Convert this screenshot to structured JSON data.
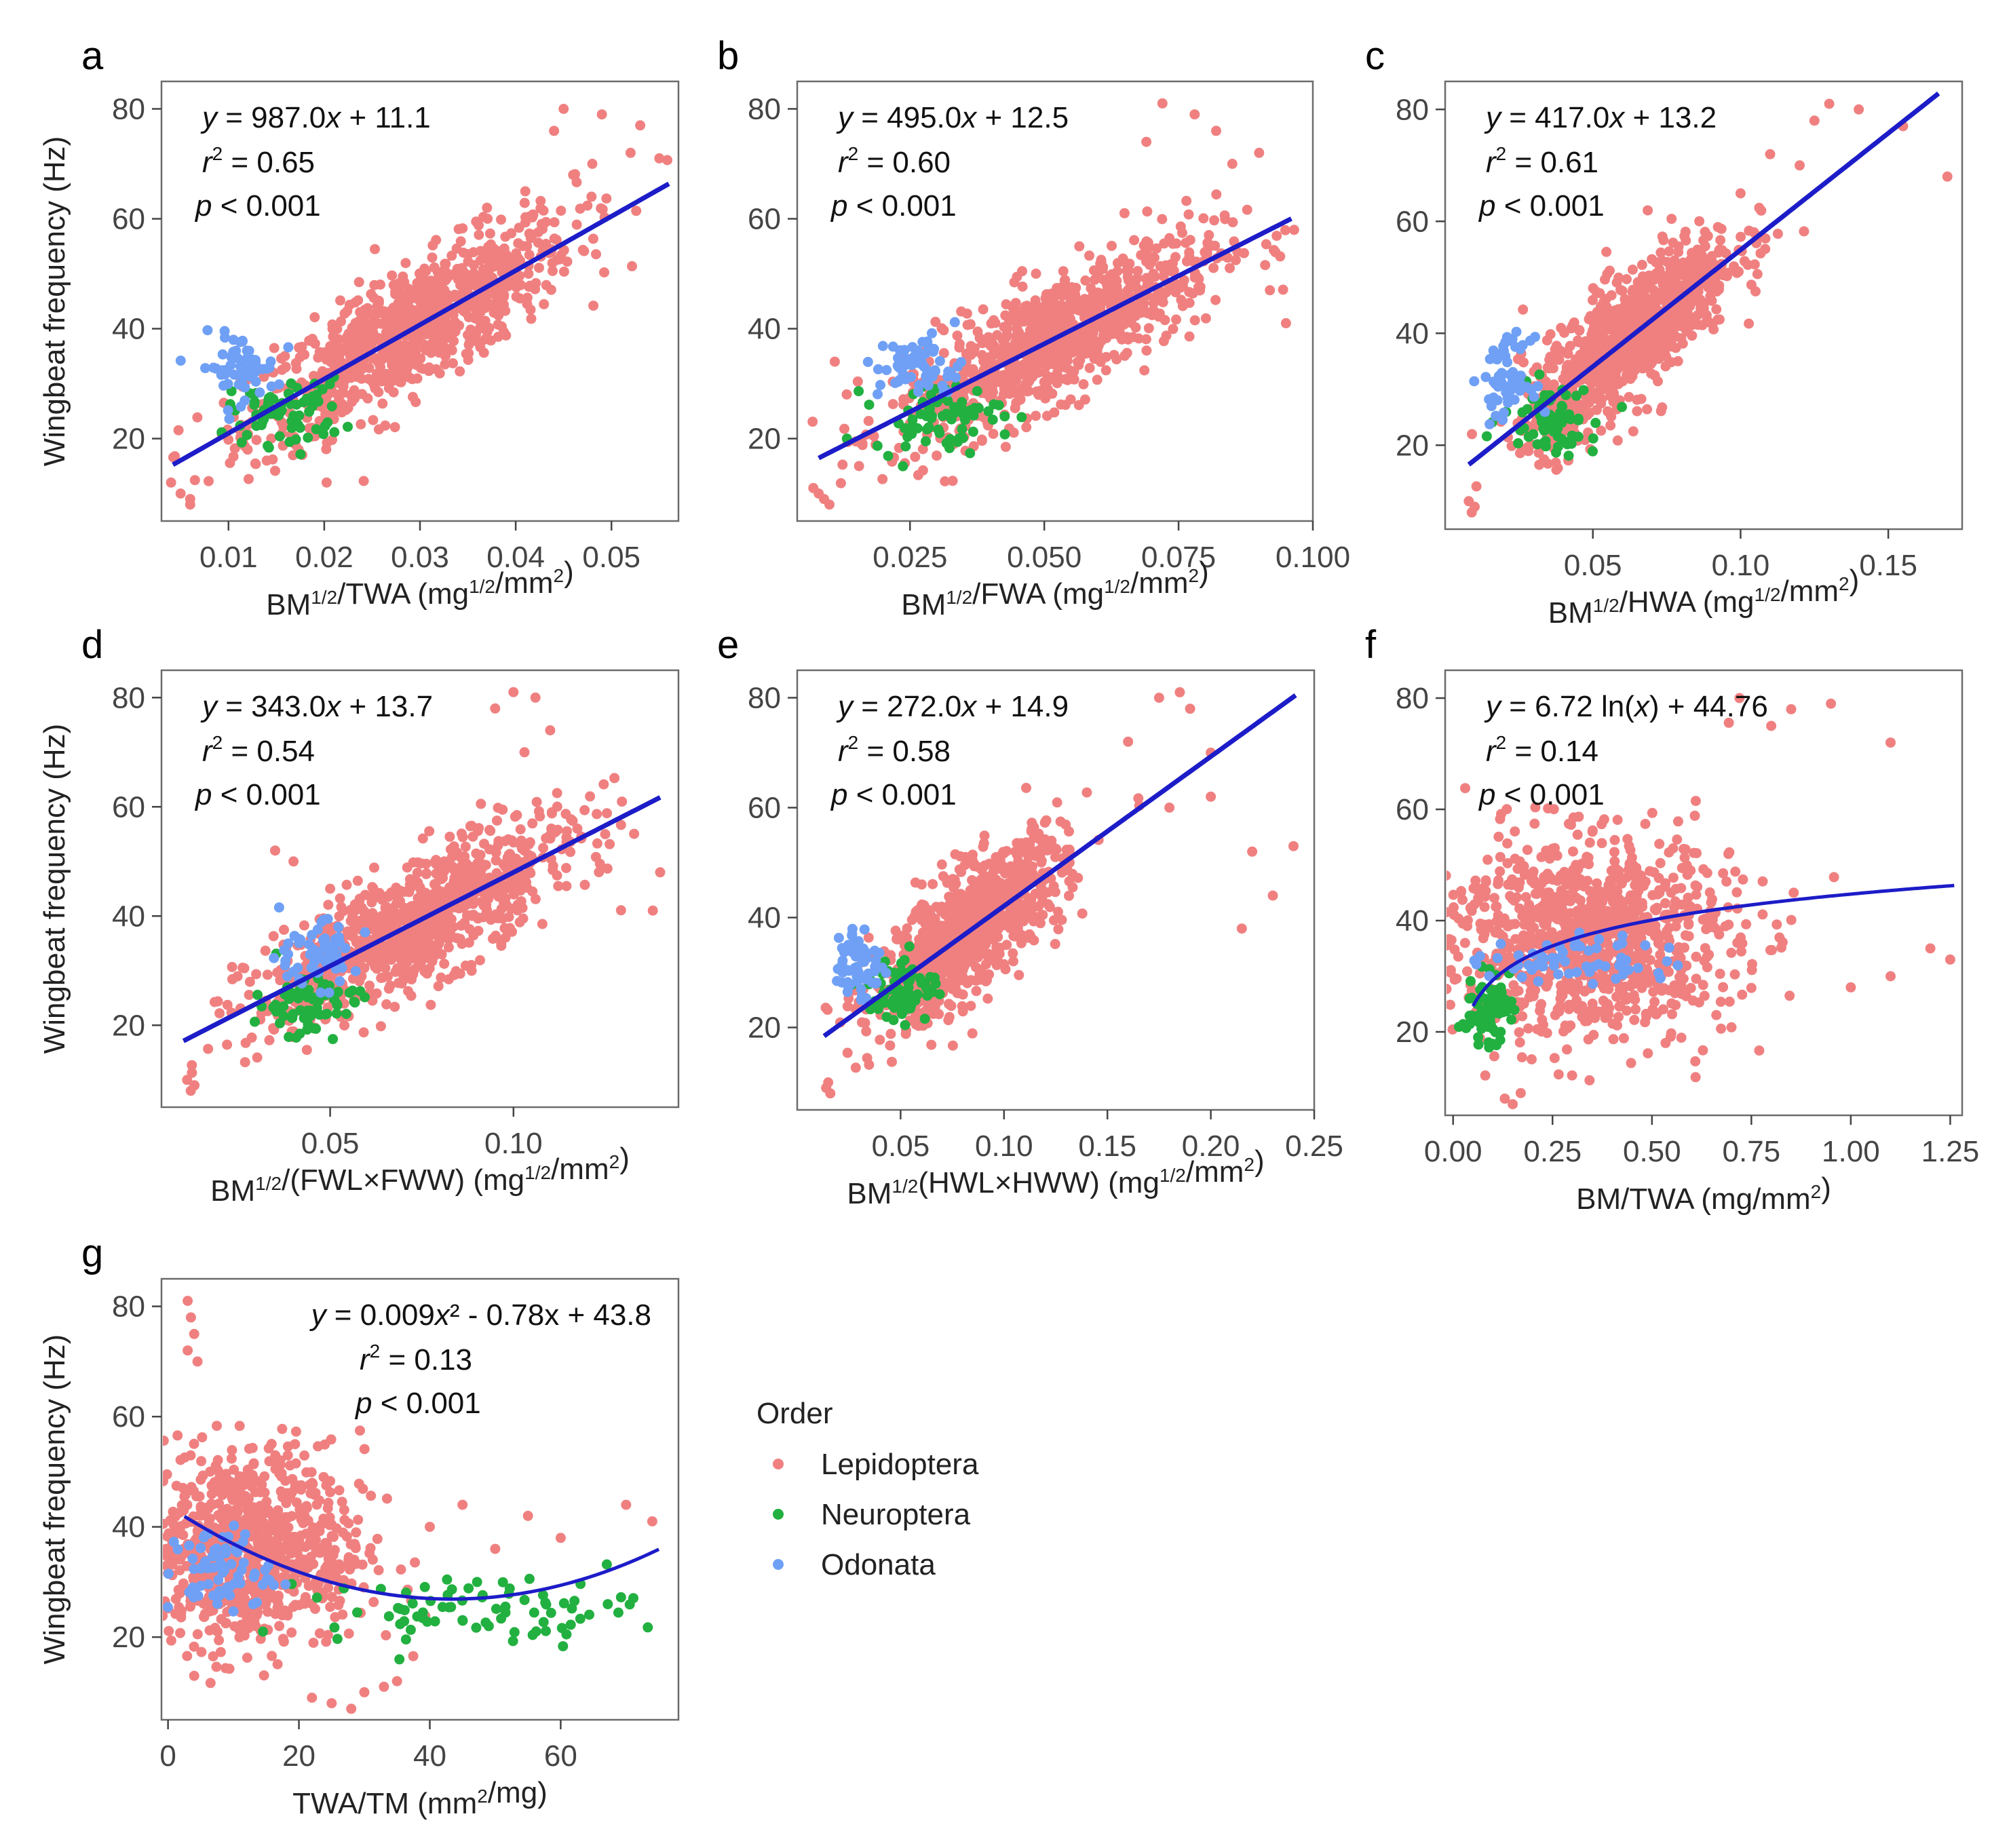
{
  "legend": {
    "title": "Order",
    "items": [
      {
        "label": "Lepidoptera",
        "color": "#F08080"
      },
      {
        "label": "Neuroptera",
        "color": "#22B040"
      },
      {
        "label": "Odonata",
        "color": "#6FA0F5"
      }
    ]
  },
  "fit_color": "#1C1CC8",
  "chart_data": [
    {
      "panel": "a",
      "type": "scatter",
      "xlabel_base": "BM",
      "xlabel_sup": "1/2",
      "xlabel_mid": "/TWA (mg",
      "xlabel_sup2": "1/2",
      "xlabel_tail": "/mm",
      "xlabel_sup3": "2",
      "xlabel_end": ")",
      "ylabel": "Wingbeat frequency (Hz)",
      "xlim": [
        0.003,
        0.057
      ],
      "ylim": [
        5,
        85
      ],
      "xticks": [
        0.01,
        0.02,
        0.03,
        0.04,
        0.05
      ],
      "xtick_labels": [
        "0.01",
        "0.02",
        "0.03",
        "0.04",
        "0.05"
      ],
      "yticks": [
        20,
        40,
        60,
        80
      ],
      "ytick_labels": [
        "20",
        "40",
        "60",
        "80"
      ],
      "eq": "y = 987.0x + 11.1",
      "eq_y": "y",
      "eq_rest": " = 987.0",
      "eq_x": "x",
      "eq_tail": " + 11.1",
      "r2": "0.65",
      "p": "0.001",
      "fit": {
        "kind": "linear",
        "slope": 987.0,
        "intercept": 11.1,
        "x_from": 0.0042,
        "x_to": 0.056
      },
      "clouds": {
        "Lepidoptera": {
          "center": [
            0.029,
            38
          ],
          "spread": [
            0.0085,
            7.5
          ],
          "n": 900,
          "outliers": [
            [
              0.045,
              80
            ],
            [
              0.049,
              79
            ],
            [
              0.044,
              76
            ],
            [
              0.052,
              72
            ],
            [
              0.048,
              70
            ],
            [
              0.055,
              71
            ],
            [
              0.005,
              10
            ],
            [
              0.006,
              9
            ],
            [
              0.004,
              12
            ],
            [
              0.006,
              8
            ],
            [
              0.041,
              65
            ],
            [
              0.037,
              62
            ],
            [
              0.012,
              18
            ],
            [
              0.014,
              16
            ],
            [
              0.046,
              68
            ],
            [
              0.053,
              77
            ]
          ]
        },
        "Neuroptera": {
          "center": [
            0.016,
            25
          ],
          "spread": [
            0.003,
            3
          ],
          "n": 70
        },
        "Odonata": {
          "center": [
            0.011,
            33
          ],
          "spread": [
            0.002,
            3
          ],
          "n": 60
        }
      }
    },
    {
      "panel": "b",
      "type": "scatter",
      "xlabel_base": "BM",
      "xlabel_sup": "1/2",
      "xlabel_mid": "/FWA (mg",
      "xlabel_sup2": "1/2",
      "xlabel_tail": "/mm",
      "xlabel_sup3": "2",
      "xlabel_end": ")",
      "ylabel": "Wingbeat frequency (Hz)",
      "xlim": [
        0.004,
        0.1
      ],
      "ylim": [
        5,
        85
      ],
      "xticks": [
        0.025,
        0.05,
        0.075,
        0.1
      ],
      "xtick_labels": [
        "0.025",
        "0.050",
        "0.075",
        "0.100"
      ],
      "yticks": [
        20,
        40,
        60,
        80
      ],
      "ytick_labels": [
        "20",
        "40",
        "60",
        "80"
      ],
      "eq": "y = 495.0x + 12.5",
      "eq_y": "y",
      "eq_rest": " = 495.0",
      "eq_x": "x",
      "eq_tail": " + 12.5",
      "r2": "0.60",
      "p": "0.001",
      "fit": {
        "kind": "linear",
        "slope": 495.0,
        "intercept": 12.5,
        "x_from": 0.008,
        "x_to": 0.096
      },
      "clouds": {
        "Lepidoptera": {
          "center": [
            0.052,
            38
          ],
          "spread": [
            0.015,
            7.5
          ],
          "n": 900,
          "outliers": [
            [
              0.072,
              81
            ],
            [
              0.078,
              79
            ],
            [
              0.082,
              76
            ],
            [
              0.069,
              74
            ],
            [
              0.085,
              70
            ],
            [
              0.09,
              72
            ],
            [
              0.008,
              10
            ],
            [
              0.009,
              9
            ],
            [
              0.01,
              8
            ],
            [
              0.007,
              11
            ],
            [
              0.095,
              41
            ],
            [
              0.092,
              47
            ],
            [
              0.011,
              34
            ]
          ]
        },
        "Neuroptera": {
          "center": [
            0.03,
            24
          ],
          "spread": [
            0.006,
            3
          ],
          "n": 70
        },
        "Odonata": {
          "center": [
            0.027,
            33
          ],
          "spread": [
            0.004,
            3
          ],
          "n": 60
        }
      }
    },
    {
      "panel": "c",
      "type": "scatter",
      "xlabel_base": "BM",
      "xlabel_sup": "1/2",
      "xlabel_mid": "/HWA (mg",
      "xlabel_sup2": "1/2",
      "xlabel_tail": "/mm",
      "xlabel_sup3": "2",
      "xlabel_end": ")",
      "ylabel": "Wingbeat frequency (Hz)",
      "xlim": [
        0.0,
        0.175
      ],
      "ylim": [
        5,
        85
      ],
      "xticks": [
        0.05,
        0.1,
        0.15
      ],
      "xtick_labels": [
        "0.05",
        "0.10",
        "0.15"
      ],
      "yticks": [
        20,
        40,
        60,
        80
      ],
      "ytick_labels": [
        "20",
        "40",
        "60",
        "80"
      ],
      "eq": "y = 417.0x + 13.2",
      "eq_y": "y",
      "eq_rest": " = 417.0",
      "eq_x": "x",
      "eq_tail": " + 13.2",
      "r2": "0.61",
      "p": "0.001",
      "fit": {
        "kind": "linear",
        "slope": 417.0,
        "intercept": 13.2,
        "x_from": 0.008,
        "x_to": 0.167
      },
      "clouds": {
        "Lepidoptera": {
          "center": [
            0.062,
            38
          ],
          "spread": [
            0.018,
            7.5
          ],
          "n": 900,
          "outliers": [
            [
              0.13,
              81
            ],
            [
              0.125,
              78
            ],
            [
              0.14,
              80
            ],
            [
              0.11,
              72
            ],
            [
              0.155,
              77
            ],
            [
              0.17,
              68
            ],
            [
              0.008,
              10
            ],
            [
              0.009,
              8
            ],
            [
              0.01,
              9
            ],
            [
              0.12,
              70
            ],
            [
              0.1,
              65
            ]
          ]
        },
        "Neuroptera": {
          "center": [
            0.036,
            25
          ],
          "spread": [
            0.008,
            3
          ],
          "n": 70
        },
        "Odonata": {
          "center": [
            0.021,
            32
          ],
          "spread": [
            0.004,
            3.5
          ],
          "n": 60
        }
      }
    },
    {
      "panel": "d",
      "type": "scatter",
      "xlabel_base": "BM",
      "xlabel_sup": "1/2",
      "xlabel_mid": "/(FWL×FWW) (mg",
      "xlabel_sup2": "1/2",
      "xlabel_tail": "/mm",
      "xlabel_sup3": "2",
      "xlabel_end": ")",
      "ylabel": "Wingbeat frequency (Hz)",
      "xlim": [
        0.004,
        0.145
      ],
      "ylim": [
        5,
        85
      ],
      "xticks": [
        0.05,
        0.1
      ],
      "xtick_labels": [
        "0.05",
        "0.10"
      ],
      "yticks": [
        20,
        40,
        60,
        80
      ],
      "ytick_labels": [
        "20",
        "40",
        "60",
        "80"
      ],
      "eq": "y = 343.0x + 13.7",
      "eq_y": "y",
      "eq_rest": " = 343.0",
      "eq_x": "x",
      "eq_tail": " + 13.7",
      "r2": "0.54",
      "p": "0.001",
      "fit": {
        "kind": "linear",
        "slope": 343.0,
        "intercept": 13.7,
        "x_from": 0.01,
        "x_to": 0.14
      },
      "clouds": {
        "Lepidoptera": {
          "center": [
            0.073,
            38
          ],
          "spread": [
            0.022,
            7.5
          ],
          "n": 900,
          "outliers": [
            [
              0.1,
              81
            ],
            [
              0.106,
              80
            ],
            [
              0.095,
              78
            ],
            [
              0.11,
              74
            ],
            [
              0.103,
              70
            ],
            [
              0.011,
              10
            ],
            [
              0.012,
              8
            ],
            [
              0.013,
              9
            ],
            [
              0.14,
              48
            ],
            [
              0.138,
              41
            ],
            [
              0.035,
              52
            ],
            [
              0.04,
              50
            ],
            [
              0.05,
              45
            ]
          ]
        },
        "Neuroptera": {
          "center": [
            0.044,
            24
          ],
          "spread": [
            0.007,
            3
          ],
          "n": 70
        },
        "Odonata": {
          "center": [
            0.045,
            33
          ],
          "spread": [
            0.006,
            3
          ],
          "n": 60
        }
      }
    },
    {
      "panel": "e",
      "type": "scatter",
      "xlabel_base": "BM",
      "xlabel_sup": "1/2",
      "xlabel_mid": "(HWL×HWW) (mg",
      "xlabel_sup2": "1/2",
      "xlabel_tail": "/mm",
      "xlabel_sup3": "2",
      "xlabel_end": ")",
      "ylabel": "Wingbeat frequency (Hz)",
      "xlim": [
        0.0,
        0.25
      ],
      "ylim": [
        5,
        85
      ],
      "xticks": [
        0.05,
        0.1,
        0.15,
        0.2,
        0.25
      ],
      "xtick_labels": [
        "0.05",
        "0.10",
        "0.15",
        "0.20",
        "0.25"
      ],
      "yticks": [
        20,
        40,
        60,
        80
      ],
      "ytick_labels": [
        "20",
        "40",
        "60",
        "80"
      ],
      "eq": "y = 272.0x + 14.9",
      "eq_y": "y",
      "eq_rest": " = 272.0",
      "eq_x": "x",
      "eq_tail": " + 14.9",
      "r2": "0.58",
      "p": "0.001",
      "fit": {
        "kind": "linear",
        "slope": 272.0,
        "intercept": 14.9,
        "x_from": 0.013,
        "x_to": 0.241
      },
      "clouds": {
        "Lepidoptera": {
          "center": [
            0.083,
            37
          ],
          "spread": [
            0.023,
            7.5
          ],
          "n": 900,
          "outliers": [
            [
              0.185,
              81
            ],
            [
              0.19,
              78
            ],
            [
              0.175,
              80
            ],
            [
              0.16,
              72
            ],
            [
              0.2,
              70
            ],
            [
              0.015,
              10
            ],
            [
              0.016,
              8
            ],
            [
              0.014,
              9
            ],
            [
              0.22,
              52
            ],
            [
              0.24,
              53
            ],
            [
              0.215,
              38
            ],
            [
              0.23,
              44
            ],
            [
              0.2,
              62
            ],
            [
              0.18,
              60
            ]
          ]
        },
        "Neuroptera": {
          "center": [
            0.051,
            27
          ],
          "spread": [
            0.008,
            3
          ],
          "n": 70
        },
        "Odonata": {
          "center": [
            0.03,
            32
          ],
          "spread": [
            0.006,
            3.5
          ],
          "n": 60
        }
      }
    },
    {
      "panel": "f",
      "type": "scatter",
      "xlabel_base": "BM/TWA (mg/mm",
      "xlabel_sup": "2",
      "xlabel_mid": ")",
      "xlabel_sup2": "",
      "xlabel_tail": "",
      "xlabel_sup3": "",
      "xlabel_end": "",
      "ylabel": "Wingbeat frequency (Hz)",
      "xlim": [
        -0.02,
        1.28
      ],
      "ylim": [
        5,
        85
      ],
      "xticks": [
        0.0,
        0.25,
        0.5,
        0.75,
        1.0,
        1.25
      ],
      "xtick_labels": [
        "0.00",
        "0.25",
        "0.50",
        "0.75",
        "1.00",
        "1.25"
      ],
      "yticks": [
        20,
        40,
        60,
        80
      ],
      "ytick_labels": [
        "20",
        "40",
        "60",
        "80"
      ],
      "eq": "y = 6.72 ln(x) + 44.76",
      "eq_y": "y",
      "eq_rest": " = 6.72 ln(",
      "eq_x": "x",
      "eq_tail": ") + 44.76",
      "r2": "0.14",
      "p": "0.001",
      "fit": {
        "kind": "log",
        "a": 6.72,
        "b": 44.76,
        "x_from": 0.05,
        "x_to": 1.26
      },
      "clouds": {
        "Lepidoptera": {
          "center": [
            0.33,
            37
          ],
          "spread": [
            0.19,
            9
          ],
          "n": 1000,
          "outliers": [
            [
              0.72,
              80
            ],
            [
              0.85,
              78
            ],
            [
              0.95,
              79
            ],
            [
              0.8,
              75
            ],
            [
              1.1,
              72
            ],
            [
              0.13,
              8
            ],
            [
              0.15,
              7
            ],
            [
              0.17,
              9
            ],
            [
              1.2,
              35
            ],
            [
              1.25,
              33
            ],
            [
              1.1,
              30
            ],
            [
              1.0,
              28
            ]
          ]
        },
        "Neuroptera": {
          "center": [
            0.08,
            24
          ],
          "spread": [
            0.03,
            3
          ],
          "n": 70
        },
        "Odonata": {
          "center": [
            0.33,
            33
          ],
          "spread": [
            0.12,
            2.5
          ],
          "n": 60
        }
      }
    },
    {
      "panel": "g",
      "type": "scatter",
      "xlabel_base": "TWA/TM (mm",
      "xlabel_sup": "2",
      "xlabel_mid": "/mg)",
      "xlabel_sup2": "",
      "xlabel_tail": "",
      "xlabel_sup3": "",
      "xlabel_end": "",
      "ylabel": "Wingbeat frequency (Hz)",
      "xlim": [
        -1,
        78
      ],
      "ylim": [
        5,
        85
      ],
      "xticks": [
        0,
        20,
        40,
        60
      ],
      "xtick_labels": [
        "0",
        "20",
        "40",
        "60"
      ],
      "yticks": [
        20,
        40,
        60,
        80
      ],
      "ytick_labels": [
        "20",
        "40",
        "60",
        "80"
      ],
      "eq": "y = 0.009x² - 0.78x + 43.8",
      "eq_y": "y",
      "eq_rest": " = 0.009",
      "eq_x": "x",
      "eq_tail": "² - 0.78x + 43.8",
      "r2": "0.13",
      "p": "0.001",
      "fit": {
        "kind": "quad",
        "a": 0.009,
        "b": -0.78,
        "c": 43.8,
        "x_from": 2.5,
        "x_to": 75
      },
      "clouds": {
        "Lepidoptera": {
          "center": [
            12,
            36
          ],
          "spread": [
            9,
            9
          ],
          "n": 900,
          "outliers": [
            [
              3,
              81
            ],
            [
              3.5,
              78
            ],
            [
              4,
              75
            ],
            [
              3,
              72
            ],
            [
              4.5,
              70
            ],
            [
              22,
              9
            ],
            [
              25,
              8
            ],
            [
              28,
              7
            ],
            [
              30,
              10
            ],
            [
              45,
              44
            ],
            [
              55,
              42
            ],
            [
              70,
              44
            ],
            [
              74,
              41
            ],
            [
              50,
              36
            ],
            [
              60,
              38
            ],
            [
              40,
              40
            ],
            [
              35,
              12
            ],
            [
              33,
              11
            ]
          ]
        },
        "Neuroptera": {
          "center": [
            48,
            25
          ],
          "spread": [
            12,
            3
          ],
          "n": 80
        },
        "Odonata": {
          "center": [
            8,
            32
          ],
          "spread": [
            4,
            4
          ],
          "n": 70
        }
      }
    }
  ]
}
